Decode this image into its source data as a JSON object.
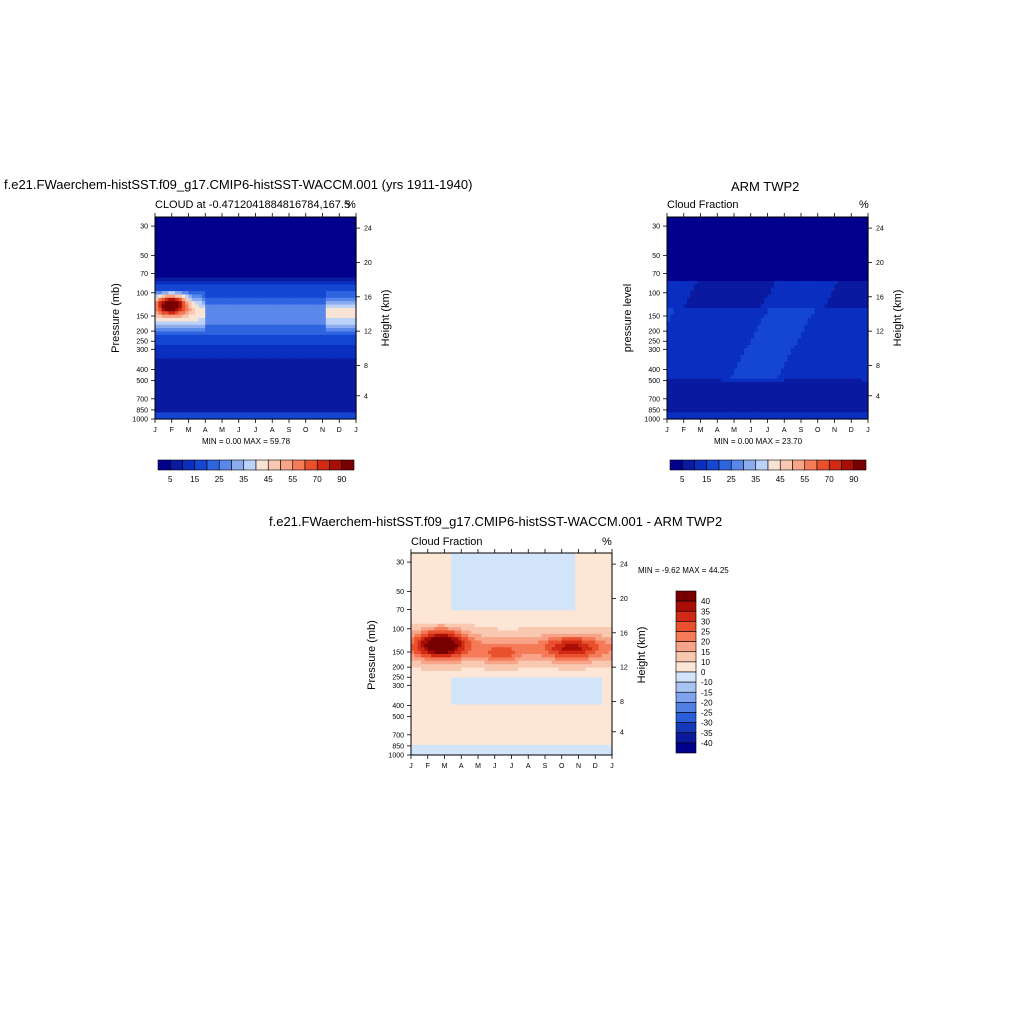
{
  "panel1": {
    "main_title": "f.e21.FWaerchem-histSST.f09_g17.CMIP6-histSST-WACCM.001 (yrs 1911-1940)",
    "left_subtitle": "CLOUD at -0.4712041884816784,167.5",
    "right_subtitle": "%",
    "ylabel": "Pressure (mb)",
    "ylabel_right": "Height (km)",
    "stats": "MIN =   0.00 MAX =  59.78"
  },
  "panel2": {
    "main_title": "ARM TWP2",
    "left_subtitle": "Cloud Fraction",
    "right_subtitle": "%",
    "ylabel": "pressure level",
    "ylabel_right": "Height (km)",
    "stats": "MIN =   0.00 MAX =  23.70"
  },
  "panel3": {
    "main_title": "f.e21.FWaerchem-histSST.f09_g17.CMIP6-histSST-WACCM.001 - ARM TWP2",
    "left_subtitle": "Cloud Fraction",
    "right_subtitle": "%",
    "ylabel": "Pressure (mb)",
    "ylabel_right": "Height (km)",
    "stats": "MIN =  -9.62 MAX =  44.25"
  },
  "chart_data": [
    {
      "type": "heatmap",
      "title": "f.e21.FWaerchem-histSST.f09_g17.CMIP6-histSST-WACCM.001 (yrs 1911-1940)",
      "subtitle": "CLOUD at -0.4712041884816784,167.5",
      "units": "%",
      "x_ticks": [
        "J",
        "F",
        "M",
        "A",
        "M",
        "J",
        "J",
        "A",
        "S",
        "O",
        "N",
        "D",
        "J"
      ],
      "y_ticks_pressure": [
        "30",
        "50",
        "70",
        "100",
        "150",
        "200",
        "250",
        "300",
        "400",
        "500",
        "700",
        "850",
        "1000"
      ],
      "y_ticks_height": [
        "24",
        "20",
        "16",
        "12",
        "8",
        "4"
      ],
      "colorbar_labels": [
        "5",
        "15",
        "25",
        "35",
        "45",
        "55",
        "70",
        "90"
      ],
      "min": 0.0,
      "max": 59.78
    },
    {
      "type": "heatmap",
      "title": "ARM TWP2",
      "subtitle": "Cloud Fraction",
      "units": "%",
      "x_ticks": [
        "J",
        "F",
        "M",
        "A",
        "M",
        "J",
        "J",
        "A",
        "S",
        "O",
        "N",
        "D",
        "J"
      ],
      "y_ticks_pressure": [
        "30",
        "50",
        "70",
        "100",
        "150",
        "200",
        "250",
        "300",
        "400",
        "500",
        "700",
        "850",
        "1000"
      ],
      "y_ticks_height": [
        "24",
        "20",
        "16",
        "12",
        "8",
        "4"
      ],
      "colorbar_labels": [
        "5",
        "15",
        "25",
        "35",
        "45",
        "55",
        "70",
        "90"
      ],
      "min": 0.0,
      "max": 23.7
    },
    {
      "type": "heatmap",
      "title": "f.e21.FWaerchem-histSST.f09_g17.CMIP6-histSST-WACCM.001 - ARM TWP2",
      "subtitle": "Cloud Fraction",
      "units": "%",
      "x_ticks": [
        "J",
        "F",
        "M",
        "A",
        "M",
        "J",
        "J",
        "A",
        "S",
        "O",
        "N",
        "D",
        "J"
      ],
      "y_ticks_pressure": [
        "30",
        "50",
        "70",
        "100",
        "150",
        "200",
        "250",
        "300",
        "400",
        "500",
        "700",
        "850",
        "1000"
      ],
      "y_ticks_height": [
        "24",
        "20",
        "16",
        "12",
        "8",
        "4"
      ],
      "colorbar_labels": [
        "40",
        "35",
        "30",
        "25",
        "20",
        "15",
        "10",
        "0",
        "-10",
        "-15",
        "-20",
        "-25",
        "-30",
        "-35",
        "-40"
      ],
      "min": -9.62,
      "max": 44.25
    }
  ],
  "colors": {
    "seq": [
      "#00008c",
      "#0a1aa0",
      "#0a2fc0",
      "#1446d2",
      "#2e64e0",
      "#5a87ea",
      "#8cacf0",
      "#bcd2f8",
      "#f8e4d4",
      "#f8c8b0",
      "#f8a488",
      "#f47a58",
      "#e8502e",
      "#d02a14",
      "#a80e06",
      "#780000"
    ],
    "div": [
      "#780000",
      "#a80e06",
      "#d02a14",
      "#e8502e",
      "#f47a58",
      "#f8a488",
      "#f8c8b0",
      "#fde6d6",
      "#d2e4fa",
      "#a8c4f4",
      "#7ea2ee",
      "#5080e4",
      "#2a5ed8",
      "#1438b8",
      "#0a1a98",
      "#00008c"
    ]
  }
}
